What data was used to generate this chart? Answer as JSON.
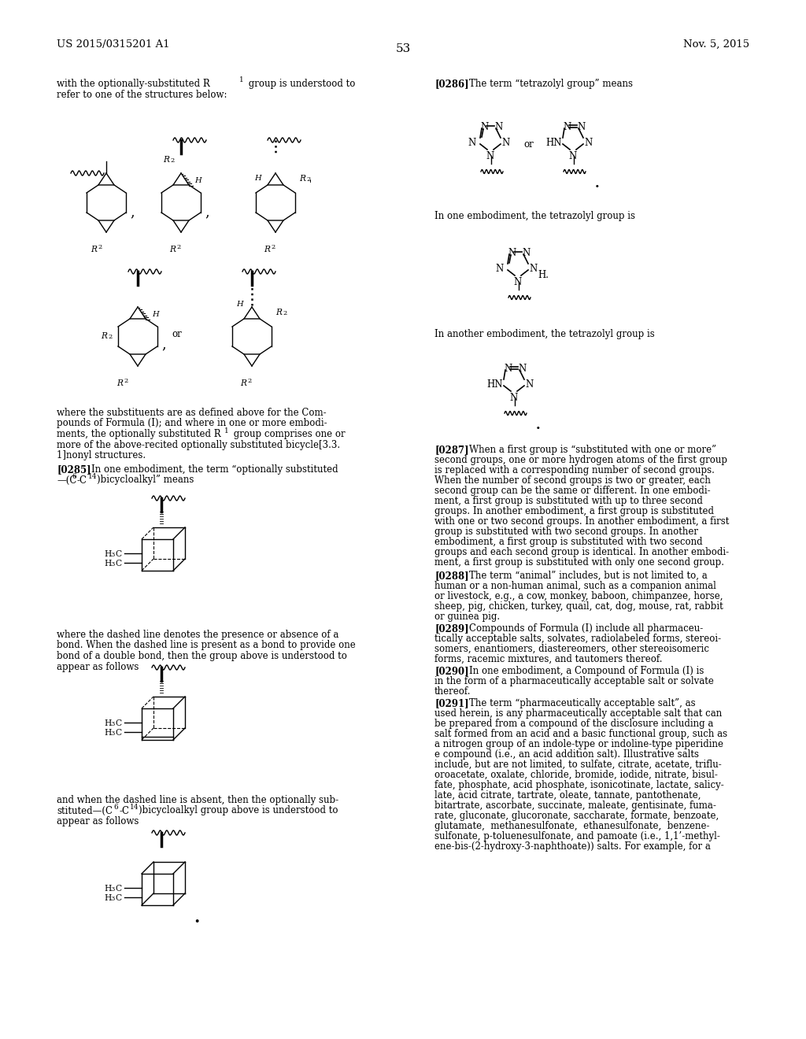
{
  "page_number": "53",
  "patent_number": "US 2015/0315201 A1",
  "patent_date": "Nov. 5, 2015",
  "background_color": "#ffffff",
  "text_color": "#000000",
  "font_size_body": 8.5,
  "font_size_header": 9.5,
  "font_size_page_num": 11
}
